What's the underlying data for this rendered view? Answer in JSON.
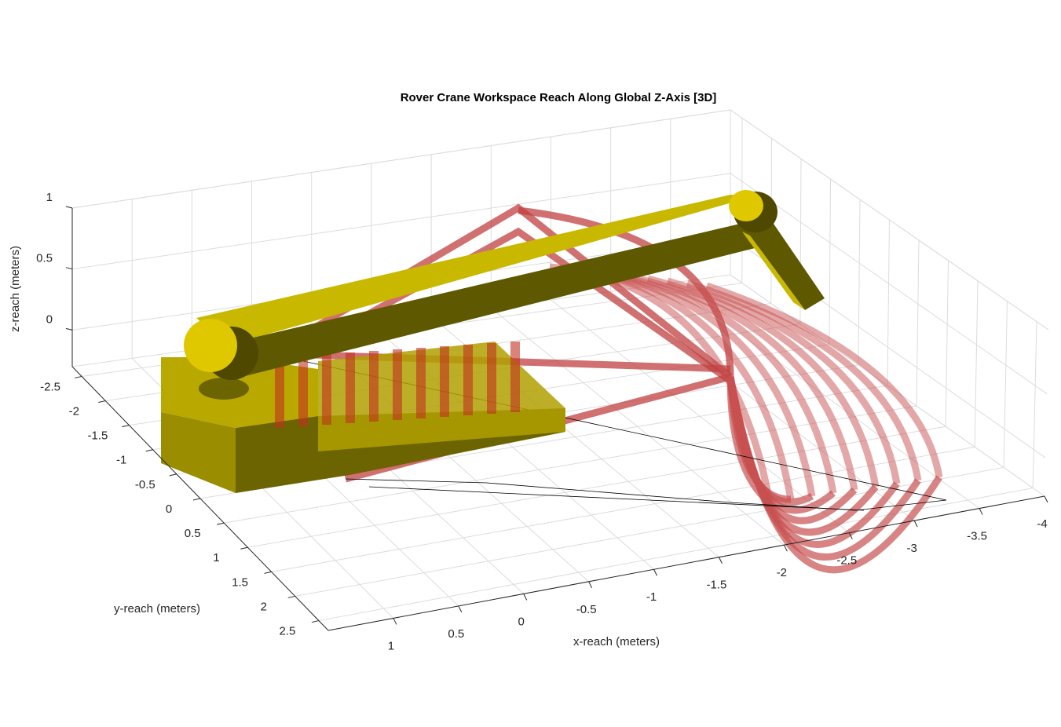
{
  "chart_data": {
    "type": "surface3d",
    "title": "Rover Crane Workspace Reach Along Global Z-Axis [3D]",
    "x_label": "x-reach (meters)",
    "y_label": "y-reach (meters)",
    "z_label": "z-reach (meters)",
    "xlim": [
      -4,
      1.5
    ],
    "ylim": [
      -2.7,
      2.7
    ],
    "zlim": [
      -0.3,
      1
    ],
    "xticks": [
      -4,
      -3.5,
      -3,
      -2.5,
      -2,
      -1.5,
      -1,
      -0.5,
      0,
      0.5,
      1
    ],
    "yticks": [
      -2.5,
      -2,
      -1.5,
      -1,
      -0.5,
      0,
      0.5,
      1,
      1.5,
      2,
      2.5
    ],
    "zticks": [
      0,
      0.5,
      1
    ],
    "grid": true
  }
}
